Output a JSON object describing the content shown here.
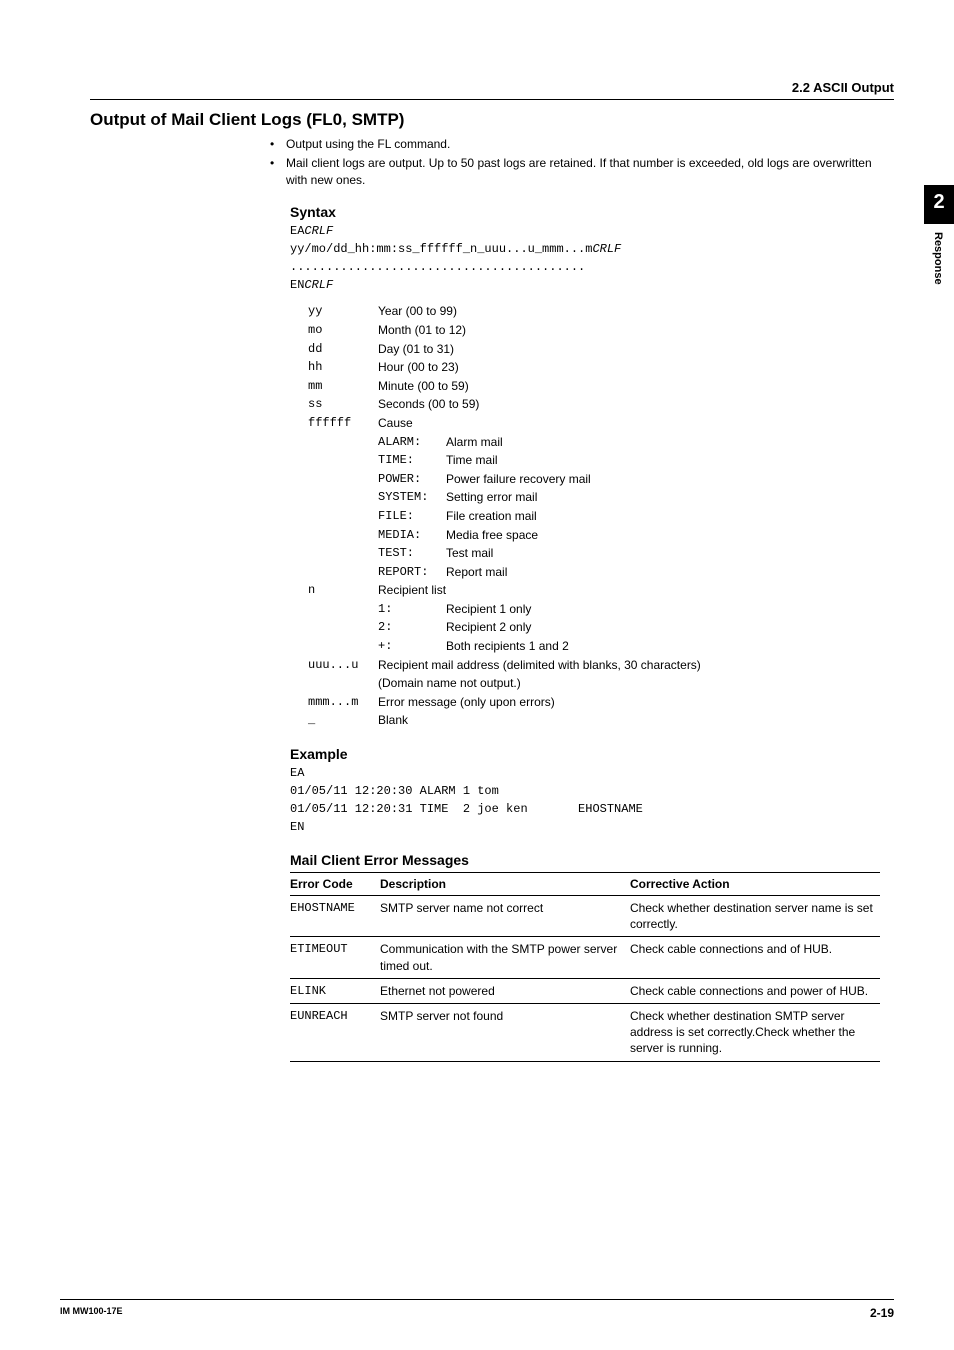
{
  "header": {
    "section": "2.2  ASCII Output"
  },
  "sidetab": {
    "num": "2",
    "label": "Response"
  },
  "title": "Output of Mail Client Logs (FL0, SMTP)",
  "bullets": [
    "Output using the FL command.",
    "Mail client logs are output. Up to 50 past logs are retained. If that number is exceeded, old logs are overwritten with new ones."
  ],
  "syntax": {
    "heading": "Syntax",
    "line1a": "EA",
    "line1b": "CRLF",
    "line2a": "yy/mo/dd_hh:mm:ss_ffffff_n_uuu...u_mmm...m",
    "line2b": "CRLF",
    "dots": ".........................................",
    "line3a": "EN",
    "line3b": "CRLF"
  },
  "defs": [
    {
      "k": "yy",
      "v": "Year (00 to 99)"
    },
    {
      "k": "mo",
      "v": "Month (01 to 12)"
    },
    {
      "k": "dd",
      "v": "Day (01 to 31)"
    },
    {
      "k": "hh",
      "v": "Hour (00 to 23)"
    },
    {
      "k": "mm",
      "v": "Minute (00 to 59)"
    },
    {
      "k": "ss",
      "v": "Seconds (00 to 59)"
    },
    {
      "k": "ffffff",
      "v": "Cause",
      "subs": [
        {
          "k": "ALARM:",
          "v": "Alarm mail"
        },
        {
          "k": "TIME:",
          "v": "Time mail"
        },
        {
          "k": "POWER:",
          "v": "Power failure recovery mail"
        },
        {
          "k": "SYSTEM:",
          "v": "Setting error mail"
        },
        {
          "k": "FILE:",
          "v": "File creation mail"
        },
        {
          "k": "MEDIA:",
          "v": "Media free space"
        },
        {
          "k": "TEST:",
          "v": "Test mail"
        },
        {
          "k": "REPORT:",
          "v": "Report mail"
        }
      ]
    },
    {
      "k": "n",
      "v": "Recipient list",
      "subs": [
        {
          "k": "1:",
          "v": "Recipient 1 only"
        },
        {
          "k": "2:",
          "v": "Recipient 2 only"
        },
        {
          "k": "+:",
          "v": "Both recipients 1 and 2"
        }
      ]
    },
    {
      "k": "uuu...u",
      "v": "Recipient mail address (delimited with blanks, 30 characters)",
      "extra": "(Domain name not output.)"
    },
    {
      "k": "mmm...m",
      "v": "Error message (only upon errors)"
    },
    {
      "k": "_",
      "v": "Blank"
    }
  ],
  "example": {
    "heading": "Example",
    "lines": [
      "EA",
      "01/05/11 12:20:30 ALARM 1 tom",
      "01/05/11 12:20:31 TIME  2 joe ken       EHOSTNAME",
      "EN"
    ]
  },
  "errtable": {
    "heading": "Mail Client Error Messages",
    "cols": [
      "Error Code",
      "Description",
      "Corrective Action"
    ],
    "rows": [
      {
        "code": "EHOSTNAME",
        "desc": "SMTP server name not correct",
        "act": "Check whether destination server name is set correctly."
      },
      {
        "code": "ETIMEOUT",
        "desc": "Communication with the SMTP power server timed out.",
        "act": "Check cable connections and of HUB."
      },
      {
        "code": "ELINK",
        "desc": "Ethernet not powered",
        "act": "Check cable connections and power of HUB."
      },
      {
        "code": "EUNREACH",
        "desc": "SMTP server not found",
        "act": "Check whether destination SMTP server address is set correctly.Check whether the server is running."
      }
    ]
  },
  "footer": {
    "left": "IM MW100-17E",
    "right": "2-19"
  }
}
